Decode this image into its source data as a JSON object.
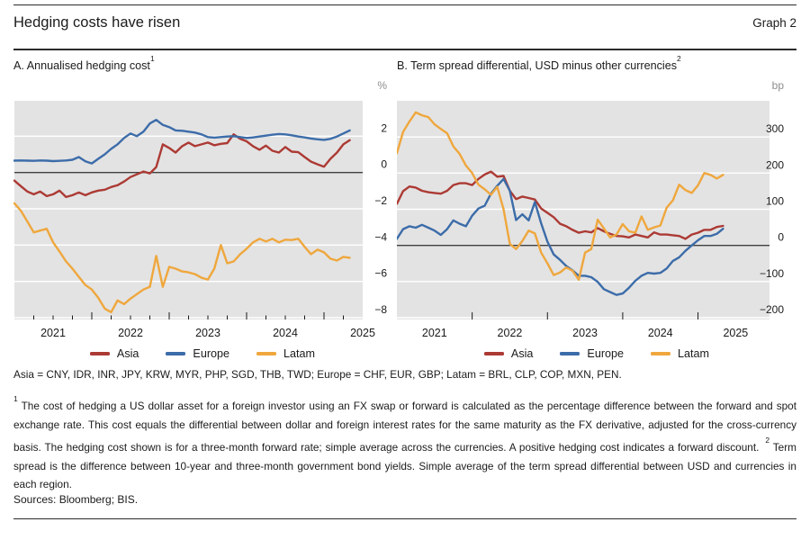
{
  "header": {
    "title": "Hedging costs have risen",
    "graph_label": "Graph 2"
  },
  "currencies_note": "Asia = CNY, IDR, INR, JPY, KRW, MYR, PHP, SGD, THB, TWD; Europe = CHF, EUR, GBP; Latam =  BRL, CLP, COP, MXN, PEN.",
  "footnotes": [
    {
      "marker": "1",
      "text": "The cost of hedging a US dollar asset for a foreign investor using an FX swap or forward is calculated as the percentage difference between the forward and spot exchange rate. This cost equals the differential between dollar and foreign interest rates for the same maturity as the FX derivative, adjusted for the cross-currency basis. The hedging cost shown is for a three-month forward rate; simple average across the currencies. A positive hedging cost indicates a forward discount."
    },
    {
      "marker": "2",
      "text": "Term spread is the difference between 10-year and three-month government bond yields. Simple average of the term spread differential between USD and currencies in each region."
    }
  ],
  "sources": "Sources: Bloomberg; BIS.",
  "chart_data": [
    {
      "type": "line",
      "title": "A. Annualised hedging cost",
      "title_sup": "1",
      "unit": "%",
      "bg": "#e3e3e3",
      "zero_color": "#3f3f3f",
      "grid": "on",
      "legend_position": "bottom",
      "x_domain": [
        2021.0,
        2025.5
      ],
      "y_domain": [
        -8.1,
        3.95
      ],
      "y_ticks": [
        2,
        0,
        -2,
        -4,
        -6,
        -8
      ],
      "y_tick_labels": [
        "2",
        "0",
        "−2",
        "−4",
        "−6",
        "−8"
      ],
      "x_major_ticks": [
        2022,
        2023,
        2024,
        2025
      ],
      "x_minor_step": 0.25,
      "x_labels": [
        {
          "v": 2021.5,
          "t": "2021"
        },
        {
          "v": 2022.5,
          "t": "2022"
        },
        {
          "v": 2023.5,
          "t": "2023"
        },
        {
          "v": 2024.5,
          "t": "2024"
        },
        {
          "v": 2025.5,
          "t": "2025"
        }
      ],
      "x": [
        2021.0,
        2021.083,
        2021.167,
        2021.25,
        2021.333,
        2021.417,
        2021.5,
        2021.583,
        2021.667,
        2021.75,
        2021.833,
        2021.917,
        2022.0,
        2022.083,
        2022.167,
        2022.25,
        2022.333,
        2022.417,
        2022.5,
        2022.583,
        2022.667,
        2022.75,
        2022.833,
        2022.917,
        2023.0,
        2023.083,
        2023.167,
        2023.25,
        2023.333,
        2023.417,
        2023.5,
        2023.583,
        2023.667,
        2023.75,
        2023.833,
        2023.917,
        2024.0,
        2024.083,
        2024.167,
        2024.25,
        2024.333,
        2024.417,
        2024.5,
        2024.583,
        2024.667,
        2024.75,
        2024.833,
        2024.917,
        2025.0,
        2025.083,
        2025.167,
        2025.25,
        2025.333
      ],
      "series": [
        {
          "name": "Asia",
          "color": "#ac3a34",
          "values": [
            -0.45,
            -0.75,
            -1.05,
            -1.2,
            -1.05,
            -1.3,
            -1.2,
            -1.0,
            -1.35,
            -1.25,
            -1.1,
            -1.25,
            -1.1,
            -1.0,
            -0.95,
            -0.8,
            -0.7,
            -0.5,
            -0.25,
            -0.1,
            0.05,
            -0.05,
            0.3,
            1.55,
            1.35,
            1.1,
            1.45,
            1.65,
            1.45,
            1.55,
            1.65,
            1.5,
            1.58,
            1.62,
            2.1,
            1.85,
            1.72,
            1.45,
            1.25,
            1.48,
            1.2,
            1.1,
            1.4,
            1.15,
            1.12,
            0.85,
            0.6,
            0.45,
            0.32,
            0.75,
            1.1,
            1.55,
            1.78
          ]
        },
        {
          "name": "Europe",
          "color": "#3c6ca9",
          "values": [
            0.65,
            0.66,
            0.65,
            0.64,
            0.66,
            0.65,
            0.63,
            0.64,
            0.66,
            0.7,
            0.85,
            0.62,
            0.5,
            0.75,
            1.0,
            1.3,
            1.55,
            1.9,
            2.15,
            2.0,
            2.25,
            2.7,
            2.9,
            2.62,
            2.5,
            2.32,
            2.3,
            2.25,
            2.2,
            2.1,
            1.95,
            1.92,
            1.95,
            1.98,
            2.0,
            1.95,
            1.9,
            1.93,
            1.98,
            2.03,
            2.08,
            2.12,
            2.1,
            2.05,
            1.98,
            1.93,
            1.87,
            1.83,
            1.8,
            1.85,
            1.98,
            2.15,
            2.32
          ]
        },
        {
          "name": "Latam",
          "color": "#efa73d",
          "values": [
            -1.7,
            -2.1,
            -2.7,
            -3.3,
            -3.2,
            -3.1,
            -3.85,
            -4.35,
            -4.9,
            -5.3,
            -5.75,
            -6.2,
            -6.45,
            -6.9,
            -7.5,
            -7.7,
            -7.05,
            -7.25,
            -6.95,
            -6.7,
            -6.45,
            -6.3,
            -4.6,
            -6.3,
            -5.2,
            -5.3,
            -5.45,
            -5.5,
            -5.6,
            -5.8,
            -5.9,
            -5.3,
            -4.0,
            -5.0,
            -4.9,
            -4.5,
            -4.2,
            -3.85,
            -3.65,
            -3.8,
            -3.65,
            -3.85,
            -3.7,
            -3.72,
            -3.65,
            -4.1,
            -4.5,
            -4.25,
            -4.4,
            -4.75,
            -4.85,
            -4.65,
            -4.7
          ]
        }
      ]
    },
    {
      "type": "line",
      "title": "B. Term spread differential, USD minus other currencies",
      "title_sup": "2",
      "unit": "bp",
      "bg": "#e3e3e3",
      "zero_color": "#3f3f3f",
      "grid": "on",
      "legend_position": "bottom",
      "x_domain": [
        2021.0,
        2025.95
      ],
      "y_domain": [
        -205,
        400
      ],
      "y_ticks": [
        300,
        200,
        100,
        0,
        -100,
        -200
      ],
      "y_tick_labels": [
        "300",
        "200",
        "100",
        "0",
        "−100",
        "−200"
      ],
      "x_major_ticks": [
        2022,
        2023,
        2024,
        2025
      ],
      "x_labels": [
        {
          "v": 2021.5,
          "t": "2021"
        },
        {
          "v": 2022.5,
          "t": "2022"
        },
        {
          "v": 2023.5,
          "t": "2023"
        },
        {
          "v": 2024.5,
          "t": "2024"
        },
        {
          "v": 2025.5,
          "t": "2025"
        }
      ],
      "x": [
        2021.0,
        2021.083,
        2021.167,
        2021.25,
        2021.333,
        2021.417,
        2021.5,
        2021.583,
        2021.667,
        2021.75,
        2021.833,
        2021.917,
        2022.0,
        2022.083,
        2022.167,
        2022.25,
        2022.333,
        2022.417,
        2022.5,
        2022.583,
        2022.667,
        2022.75,
        2022.833,
        2022.917,
        2023.0,
        2023.083,
        2023.167,
        2023.25,
        2023.333,
        2023.417,
        2023.5,
        2023.583,
        2023.667,
        2023.75,
        2023.833,
        2023.917,
        2024.0,
        2024.083,
        2024.167,
        2024.25,
        2024.333,
        2024.417,
        2024.5,
        2024.583,
        2024.667,
        2024.75,
        2024.833,
        2024.917,
        2025.0,
        2025.083,
        2025.167,
        2025.25,
        2025.333
      ],
      "series": [
        {
          "name": "Asia",
          "color": "#ac3a34",
          "values": [
            115,
            150,
            163,
            160,
            151,
            147,
            145,
            143,
            151,
            167,
            172,
            172,
            167,
            184,
            196,
            204,
            190,
            192,
            151,
            128,
            135,
            131,
            127,
            102,
            90,
            78,
            60,
            53,
            43,
            35,
            39,
            36,
            48,
            39,
            32,
            26,
            25,
            22,
            30,
            26,
            22,
            36,
            30,
            30,
            28,
            26,
            18,
            30,
            35,
            43,
            43,
            51,
            54
          ]
        },
        {
          "name": "Europe",
          "color": "#3c6ca9",
          "values": [
            18,
            45,
            53,
            49,
            57,
            49,
            41,
            29,
            45,
            69,
            60,
            53,
            82,
            102,
            110,
            143,
            165,
            184,
            151,
            70,
            86,
            69,
            120,
            61,
            10,
            -25,
            -40,
            -57,
            -69,
            -84,
            -84,
            -88,
            -101,
            -121,
            -129,
            -137,
            -133,
            -117,
            -98,
            -84,
            -76,
            -78,
            -76,
            -64,
            -43,
            -33,
            -15,
            0,
            14,
            26,
            26,
            32,
            46
          ]
        },
        {
          "name": "Latam",
          "color": "#efa73d",
          "values": [
            255,
            314,
            343,
            368,
            360,
            355,
            335,
            322,
            310,
            274,
            253,
            221,
            200,
            168,
            155,
            140,
            162,
            100,
            4,
            -10,
            12,
            41,
            33,
            -20,
            -50,
            -82,
            -75,
            -61,
            -70,
            -95,
            -20,
            -10,
            71,
            47,
            22,
            30,
            59,
            39,
            35,
            80,
            43,
            50,
            55,
            104,
            125,
            168,
            153,
            145,
            166,
            200,
            195,
            185,
            195
          ]
        }
      ]
    }
  ]
}
